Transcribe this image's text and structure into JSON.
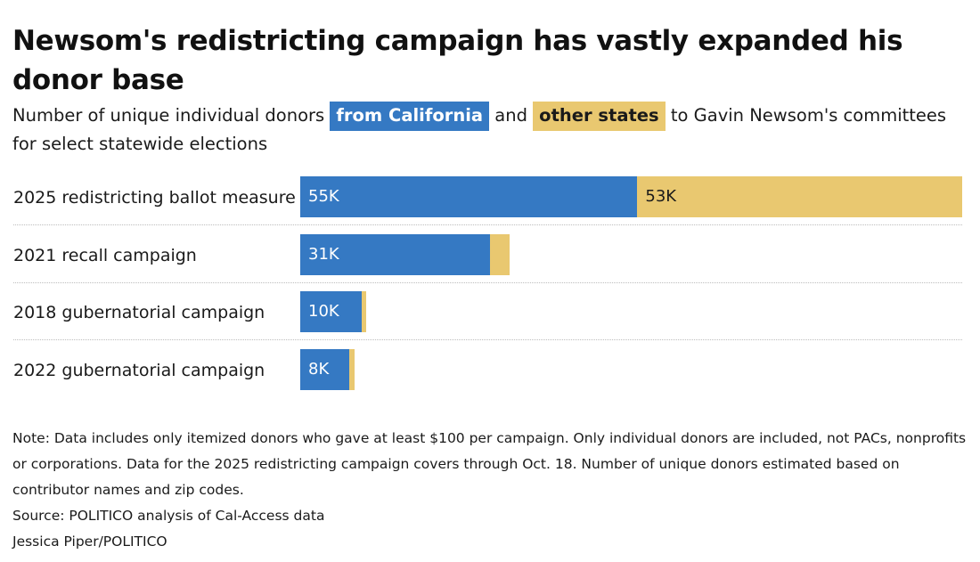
{
  "title": "Newsom's redistricting campaign has vastly expanded his donor base",
  "subtitle": {
    "prefix": "Number of unique individual donors",
    "key_california": "from California",
    "middle": "and",
    "key_other": "other states",
    "suffix": "to Gavin Newsom's committees for select statewide elections"
  },
  "colors": {
    "california": "#3579c3",
    "other_states": "#e9c870"
  },
  "chart_data": {
    "type": "bar",
    "orientation": "horizontal",
    "stacked": true,
    "title": "Newsom's redistricting campaign has vastly expanded his donor base",
    "xlabel": "",
    "ylabel": "",
    "xlim": [
      0,
      108
    ],
    "unit": "thousand donors",
    "categories": [
      "2025 redistricting ballot measure",
      "2021 recall campaign",
      "2018 gubernatorial campaign",
      "2022 gubernatorial campaign"
    ],
    "series": [
      {
        "name": "from California",
        "values": [
          55,
          31,
          10,
          8
        ],
        "labels": [
          "55K",
          "31K",
          "10K",
          "8K"
        ]
      },
      {
        "name": "other states",
        "values": [
          53,
          3.2,
          0.7,
          0.8
        ],
        "labels": [
          "53K",
          "",
          "",
          ""
        ]
      }
    ]
  },
  "notes": {
    "note": "Note: Data includes only itemized donors who gave at least $100 per campaign. Only individual donors are included, not PACs, nonprofits or corporations. Data for the 2025 redistricting campaign covers through Oct. 18. Number of unique donors estimated based on contributor names and zip codes.",
    "source": "Source: POLITICO analysis of Cal-Access data",
    "credit": "Jessica Piper/POLITICO"
  }
}
